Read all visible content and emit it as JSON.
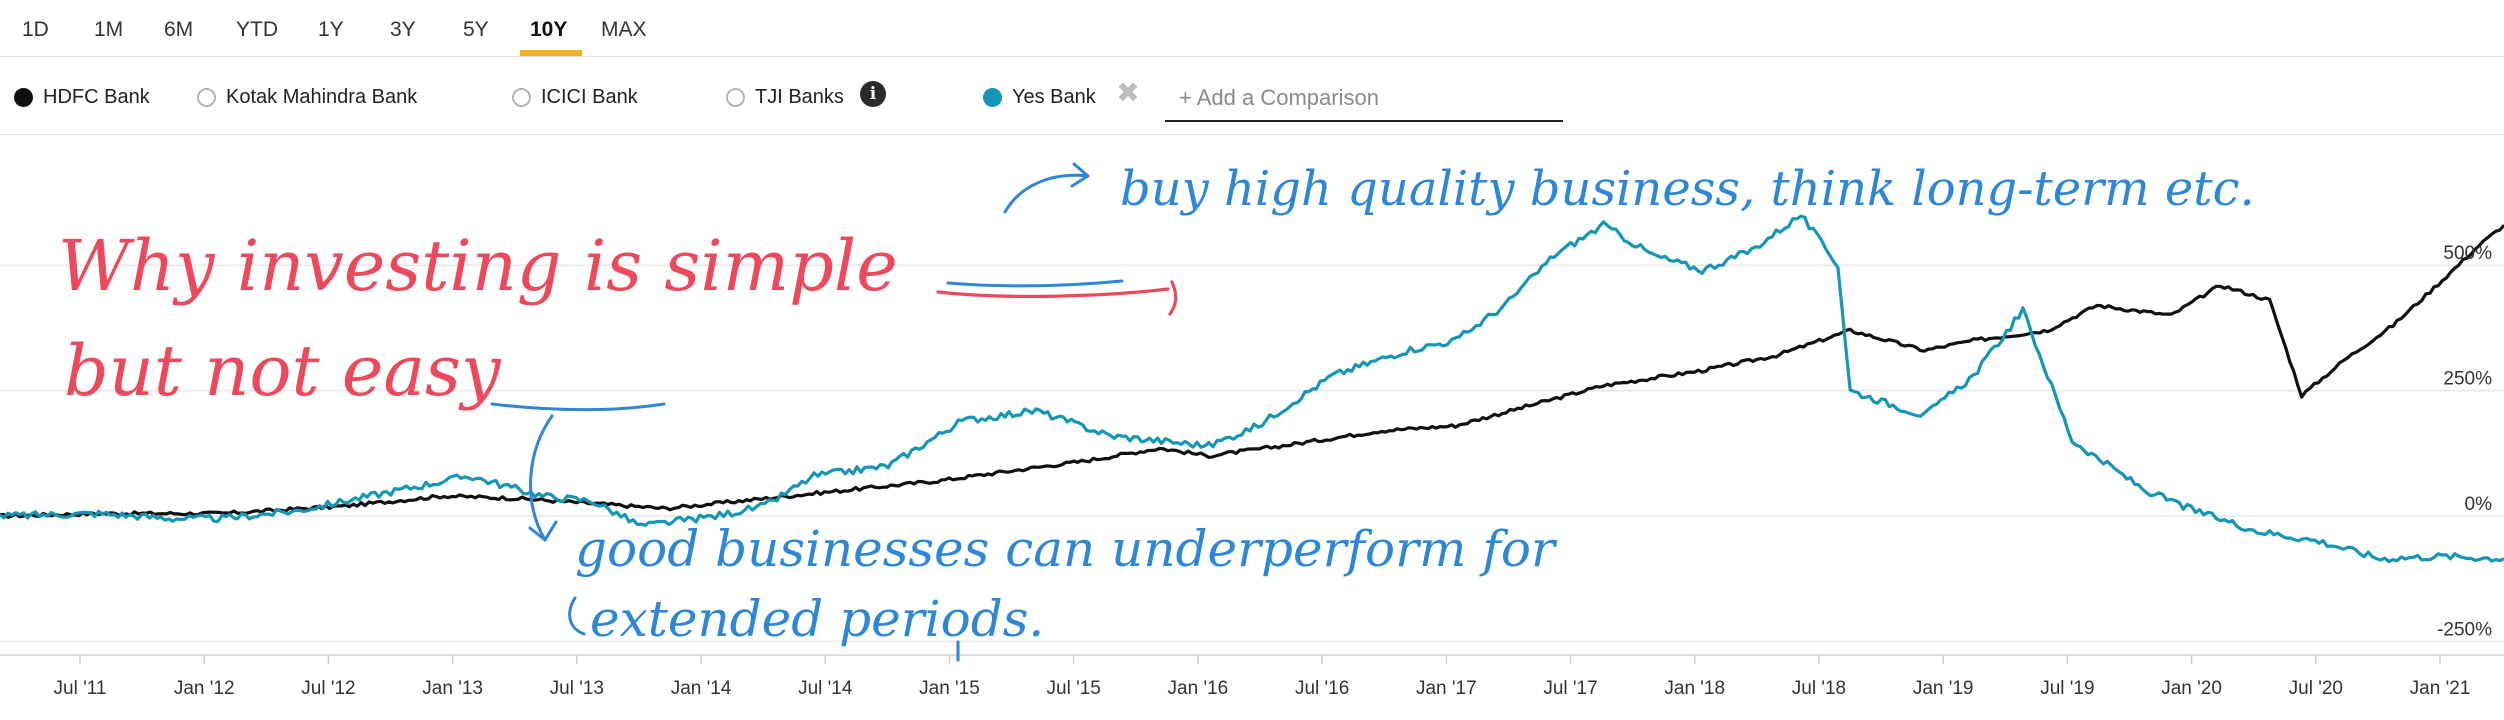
{
  "range_tabs": [
    {
      "label": "1D",
      "active": false
    },
    {
      "label": "1M",
      "active": false
    },
    {
      "label": "6M",
      "active": false
    },
    {
      "label": "YTD",
      "active": false
    },
    {
      "label": "1Y",
      "active": false
    },
    {
      "label": "3Y",
      "active": false
    },
    {
      "label": "5Y",
      "active": false
    },
    {
      "label": "10Y",
      "active": true
    },
    {
      "label": "MAX",
      "active": false
    }
  ],
  "accent_color": "#f2b01e",
  "legend": {
    "items": [
      {
        "label": "HDFC Bank",
        "selected": true,
        "color": "#111111"
      },
      {
        "label": "Kotak Mahindra Bank",
        "selected": false,
        "color": "#bdbdbd"
      },
      {
        "label": "ICICI Bank",
        "selected": false,
        "color": "#bdbdbd"
      },
      {
        "label": "TJI Banks",
        "selected": false,
        "color": "#bdbdbd"
      },
      {
        "label": "Yes Bank",
        "selected": true,
        "color": "#1496b4"
      }
    ],
    "info_icon": "info-icon",
    "remove_icon": "close-icon",
    "compare_placeholder": "+ Add a Comparison"
  },
  "annotations": {
    "title_line1_parts": [
      "Why investing is ",
      "simple"
    ],
    "title_line2_parts": [
      "but not ",
      "easy"
    ],
    "note_top": "buy high quality business, think long-term etc.",
    "note_bottom_line1": "good businesses can underperform for",
    "note_bottom_line2": "extended periods."
  },
  "chart_data": {
    "type": "line",
    "x_tick_labels": [
      "Jul '11",
      "Jan '12",
      "Jul '12",
      "Jan '13",
      "Jul '13",
      "Jan '14",
      "Jul '14",
      "Jan '15",
      "Jul '15",
      "Jan '16",
      "Jul '16",
      "Jan '17",
      "Jul '17",
      "Jan '18",
      "Jul '18",
      "Jan '19",
      "Jul '19",
      "Jan '20",
      "Jul '20",
      "Jan '21"
    ],
    "y_tick_labels": [
      "500%",
      "250%",
      "0%",
      "-250%"
    ],
    "y_ticks": [
      500,
      250,
      0,
      -250
    ],
    "ylim": [
      -275,
      620
    ],
    "x_range": [
      2011.1,
      2021.25
    ],
    "grid": "horizontal",
    "series": [
      {
        "name": "HDFC Bank",
        "color": "#111111",
        "points": [
          [
            2011.1,
            0
          ],
          [
            2011.5,
            5
          ],
          [
            2012.0,
            5
          ],
          [
            2012.5,
            20
          ],
          [
            2012.9,
            40
          ],
          [
            2013.2,
            35
          ],
          [
            2013.5,
            25
          ],
          [
            2013.8,
            15
          ],
          [
            2014.0,
            25
          ],
          [
            2014.3,
            40
          ],
          [
            2014.6,
            55
          ],
          [
            2014.9,
            70
          ],
          [
            2015.2,
            90
          ],
          [
            2015.5,
            110
          ],
          [
            2015.8,
            135
          ],
          [
            2016.0,
            120
          ],
          [
            2016.3,
            140
          ],
          [
            2016.7,
            170
          ],
          [
            2017.0,
            180
          ],
          [
            2017.3,
            220
          ],
          [
            2017.6,
            260
          ],
          [
            2018.0,
            290
          ],
          [
            2018.3,
            320
          ],
          [
            2018.6,
            370
          ],
          [
            2018.9,
            330
          ],
          [
            2019.1,
            350
          ],
          [
            2019.4,
            370
          ],
          [
            2019.6,
            420
          ],
          [
            2019.9,
            400
          ],
          [
            2020.1,
            460
          ],
          [
            2020.3,
            430
          ],
          [
            2020.43,
            240
          ],
          [
            2020.6,
            310
          ],
          [
            2020.8,
            380
          ],
          [
            2021.0,
            470
          ],
          [
            2021.15,
            540
          ],
          [
            2021.25,
            580
          ]
        ]
      },
      {
        "name": "Yes Bank",
        "color": "#1496b4",
        "points": [
          [
            2011.1,
            0
          ],
          [
            2011.5,
            5
          ],
          [
            2011.8,
            -5
          ],
          [
            2012.0,
            -5
          ],
          [
            2012.3,
            10
          ],
          [
            2012.7,
            50
          ],
          [
            2013.0,
            80
          ],
          [
            2013.3,
            40
          ],
          [
            2013.5,
            30
          ],
          [
            2013.7,
            -20
          ],
          [
            2014.0,
            0
          ],
          [
            2014.2,
            20
          ],
          [
            2014.4,
            80
          ],
          [
            2014.7,
            100
          ],
          [
            2015.0,
            190
          ],
          [
            2015.3,
            210
          ],
          [
            2015.6,
            160
          ],
          [
            2016.0,
            140
          ],
          [
            2016.2,
            180
          ],
          [
            2016.5,
            280
          ],
          [
            2016.8,
            330
          ],
          [
            2017.0,
            350
          ],
          [
            2017.2,
            420
          ],
          [
            2017.4,
            520
          ],
          [
            2017.6,
            580
          ],
          [
            2017.8,
            520
          ],
          [
            2018.0,
            490
          ],
          [
            2018.2,
            530
          ],
          [
            2018.4,
            600
          ],
          [
            2018.55,
            500
          ],
          [
            2018.6,
            250
          ],
          [
            2018.9,
            200
          ],
          [
            2019.1,
            280
          ],
          [
            2019.3,
            410
          ],
          [
            2019.5,
            150
          ],
          [
            2019.8,
            50
          ],
          [
            2020.0,
            10
          ],
          [
            2020.25,
            -30
          ],
          [
            2020.5,
            -50
          ],
          [
            2020.75,
            -85
          ],
          [
            2021.0,
            -80
          ],
          [
            2021.25,
            -85
          ]
        ]
      }
    ]
  }
}
